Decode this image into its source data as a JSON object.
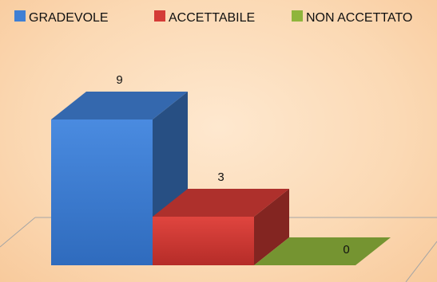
{
  "chart_data": {
    "type": "bar",
    "style": "3d",
    "categories": [
      "GRADEVOLE",
      "ACCETTABILE",
      "NON ACCETTATO"
    ],
    "values": [
      9,
      3,
      0
    ],
    "data_labels": [
      "9",
      "3",
      "0"
    ],
    "ylim": [
      0,
      9
    ],
    "legend_position": "top",
    "grid": false,
    "colors": [
      "#3f7fd4",
      "#d43b36",
      "#8fb53c"
    ],
    "title": "",
    "xlabel": "",
    "ylabel": ""
  }
}
